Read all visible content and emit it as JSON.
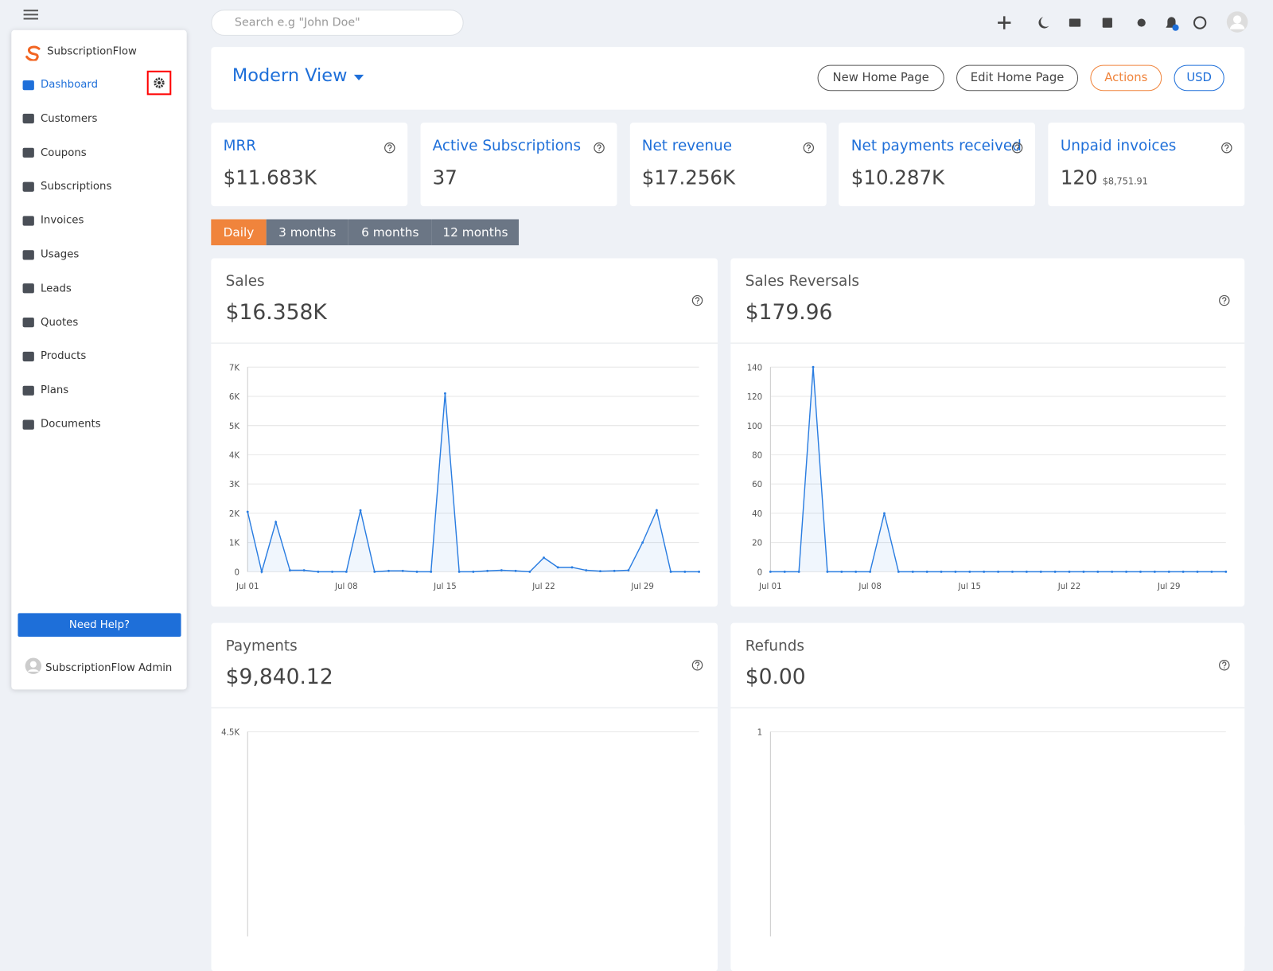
{
  "sidebar": {
    "brand": "SubscriptionFlow",
    "items": [
      "Dashboard",
      "Customers",
      "Coupons",
      "Subscriptions",
      "Invoices",
      "Usages",
      "Leads",
      "Quotes",
      "Products",
      "Plans",
      "Documents"
    ],
    "help_button": "Need Help?",
    "user": "SubscriptionFlow Admin"
  },
  "topbar": {
    "search_placeholder": "Search e.g \"John Doe\""
  },
  "view": {
    "title": "Modern View",
    "buttons": [
      "New Home Page",
      "Edit Home Page",
      "Actions",
      "USD"
    ]
  },
  "kpis": [
    {
      "label": "MRR",
      "value": "$11.683K"
    },
    {
      "label": "Active Subscriptions",
      "value": "37"
    },
    {
      "label": "Net revenue",
      "value": "$17.256K"
    },
    {
      "label": "Net payments received",
      "value": "$10.287K"
    },
    {
      "label": "Unpaid invoices",
      "value": "120",
      "sub": "$8,751.91"
    }
  ],
  "periods": [
    "Daily",
    "3 months",
    "6 months",
    "12 months"
  ],
  "chart_data": [
    {
      "type": "line",
      "title": "Sales",
      "total": "$16.358K",
      "color": "#2a7de1",
      "grid": true,
      "categories": [
        "Jul 01",
        null,
        null,
        null,
        null,
        null,
        null,
        "Jul 08",
        null,
        null,
        null,
        null,
        null,
        null,
        "Jul 15",
        null,
        null,
        null,
        null,
        null,
        null,
        "Jul 22",
        null,
        null,
        null,
        null,
        null,
        null,
        "Jul 29",
        null,
        null,
        null,
        null
      ],
      "values": [
        2050,
        0,
        1700,
        50,
        50,
        0,
        0,
        0,
        2100,
        0,
        30,
        30,
        0,
        0,
        6100,
        0,
        0,
        30,
        50,
        30,
        0,
        480,
        150,
        150,
        50,
        20,
        30,
        50,
        1000,
        2100,
        0,
        0,
        0
      ],
      "ylim": [
        0,
        7000
      ],
      "yticks": [
        0,
        {
          "value": 1000,
          "label": "1K"
        },
        {
          "value": 2000,
          "label": "2K"
        },
        {
          "value": 3000,
          "label": "3K"
        },
        {
          "value": 4000,
          "label": "4K"
        },
        {
          "value": 5000,
          "label": "5K"
        },
        {
          "value": 6000,
          "label": "6K"
        },
        {
          "value": 7000,
          "label": "7K"
        }
      ]
    },
    {
      "type": "line",
      "title": "Sales Reversals",
      "total": "$179.96",
      "color": "#2a7de1",
      "grid": true,
      "categories": [
        "Jul 01",
        null,
        null,
        null,
        null,
        null,
        null,
        "Jul 08",
        null,
        null,
        null,
        null,
        null,
        null,
        "Jul 15",
        null,
        null,
        null,
        null,
        null,
        null,
        "Jul 22",
        null,
        null,
        null,
        null,
        null,
        null,
        "Jul 29",
        null,
        null,
        null,
        null
      ],
      "values": [
        0,
        0,
        0,
        140,
        0,
        0,
        0,
        0,
        40,
        0,
        0,
        0,
        0,
        0,
        0,
        0,
        0,
        0,
        0,
        0,
        0,
        0,
        0,
        0,
        0,
        0,
        0,
        0,
        0,
        0,
        0,
        0,
        0
      ],
      "ylim": [
        0,
        140
      ],
      "yticks": [
        0,
        20,
        40,
        60,
        80,
        100,
        120,
        140
      ]
    },
    {
      "type": "line",
      "title": "Payments",
      "total": "$9,840.12",
      "grid": true,
      "yticks": [
        {
          "value": 4500,
          "label": "4.5K"
        }
      ]
    },
    {
      "type": "line",
      "title": "Refunds",
      "total": "$0.00",
      "grid": true,
      "yticks": [
        1
      ]
    }
  ]
}
